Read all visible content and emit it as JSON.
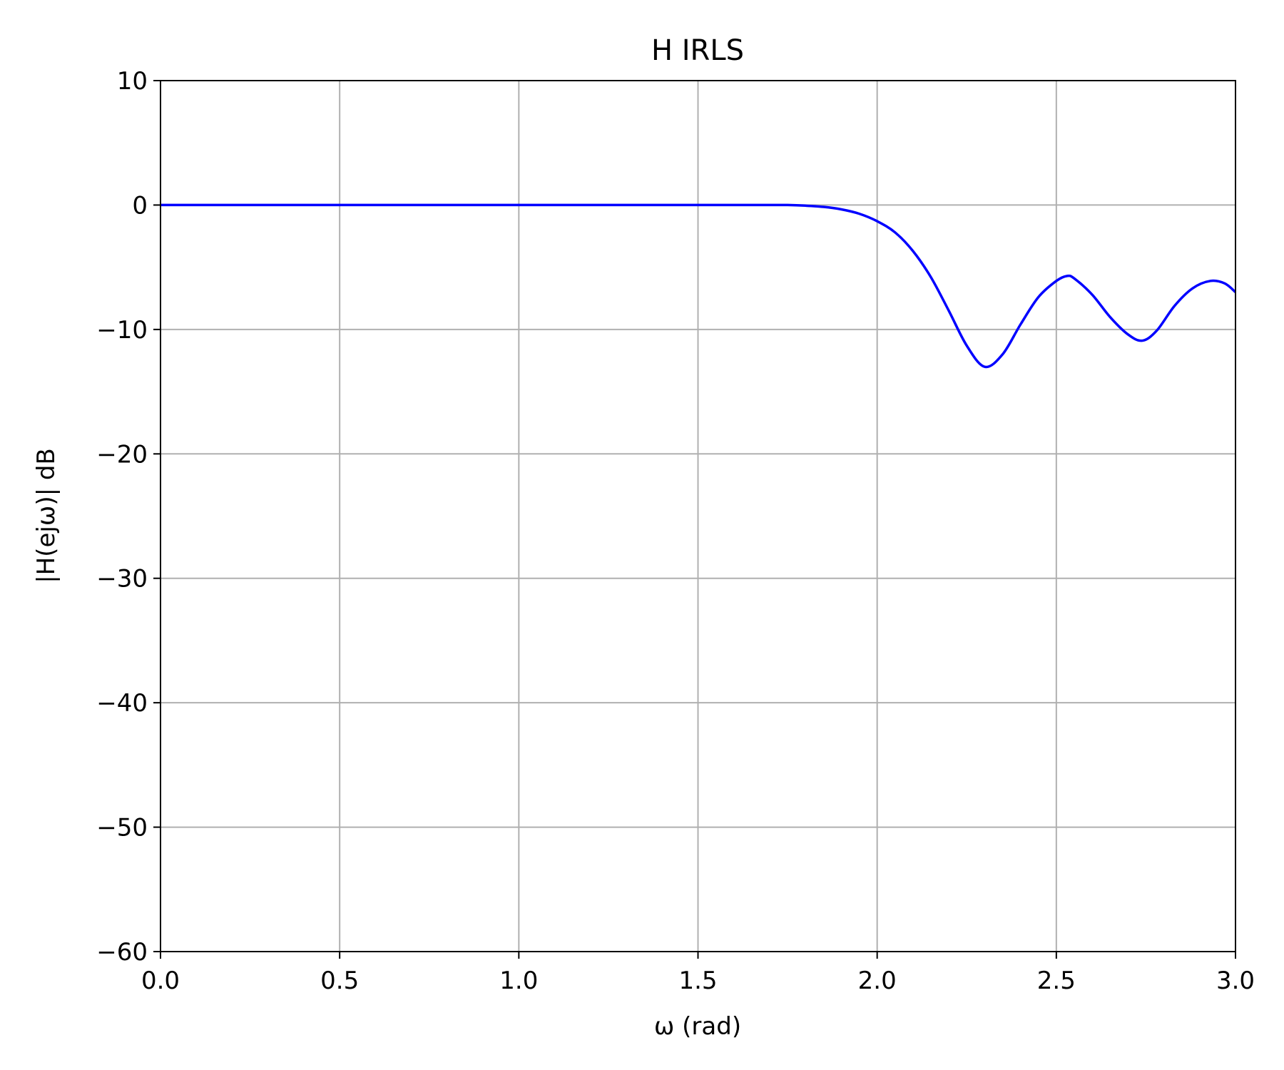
{
  "chart_data": {
    "type": "line",
    "title": "H IRLS",
    "xlabel": "ω (rad)",
    "ylabel": "|H(ejω)| dB",
    "xlim": [
      0.0,
      3.0
    ],
    "ylim": [
      -60,
      10
    ],
    "grid": true,
    "xticks": [
      "0.0",
      "0.5",
      "1.0",
      "1.5",
      "2.0",
      "2.5",
      "3.0"
    ],
    "yticks": [
      "−60",
      "−50",
      "−40",
      "−30",
      "−20",
      "−10",
      "0",
      "10"
    ],
    "series": [
      {
        "color": "#0000ff",
        "x": [
          0.0,
          0.25,
          0.5,
          0.75,
          1.0,
          1.25,
          1.5,
          1.6,
          1.7,
          1.75,
          1.8,
          1.85,
          1.9,
          1.95,
          2.0,
          2.05,
          2.1,
          2.15,
          2.2,
          2.25,
          2.3,
          2.35,
          2.4,
          2.45,
          2.5,
          2.53,
          2.55,
          2.6,
          2.65,
          2.7,
          2.74,
          2.78,
          2.83,
          2.88,
          2.93,
          2.97,
          3.0
        ],
        "y": [
          0.0,
          0.0,
          0.0,
          0.0,
          0.0,
          0.0,
          0.0,
          0.0,
          0.0,
          0.0,
          -0.05,
          -0.15,
          -0.35,
          -0.7,
          -1.3,
          -2.2,
          -3.7,
          -5.8,
          -8.5,
          -11.3,
          -13.0,
          -12.0,
          -9.6,
          -7.4,
          -6.1,
          -5.7,
          -5.9,
          -7.2,
          -9.0,
          -10.4,
          -10.9,
          -10.1,
          -8.1,
          -6.7,
          -6.1,
          -6.3,
          -7.0
        ]
      }
    ]
  }
}
